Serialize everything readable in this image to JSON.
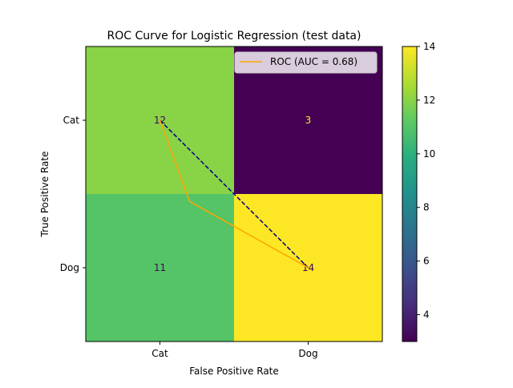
{
  "chart_data": {
    "type": "heatmap",
    "title": "ROC Curve for Logistic Regression (test data)",
    "xlabel": "False Positive Rate",
    "ylabel": "True Positive Rate",
    "x_categories": [
      "Cat",
      "Dog"
    ],
    "y_categories": [
      "Cat",
      "Dog"
    ],
    "matrix": [
      [
        12,
        3
      ],
      [
        11,
        14
      ]
    ],
    "colormap": "viridis",
    "colorbar": {
      "min": 3,
      "max": 14,
      "ticks": [
        "4",
        "6",
        "8",
        "10",
        "12",
        "14"
      ]
    },
    "roc_curve": {
      "name": "ROC (AUC = 0.68)",
      "color": "#ffa500",
      "x": [
        0,
        0.2,
        1
      ],
      "y": [
        1,
        0.45,
        0
      ]
    },
    "diagonal": {
      "color": "#000080",
      "x": [
        0,
        1
      ],
      "y": [
        1,
        0
      ]
    },
    "legend": {
      "label": "ROC (AUC = 0.68)",
      "placement": "upper-right"
    },
    "grid": false
  }
}
